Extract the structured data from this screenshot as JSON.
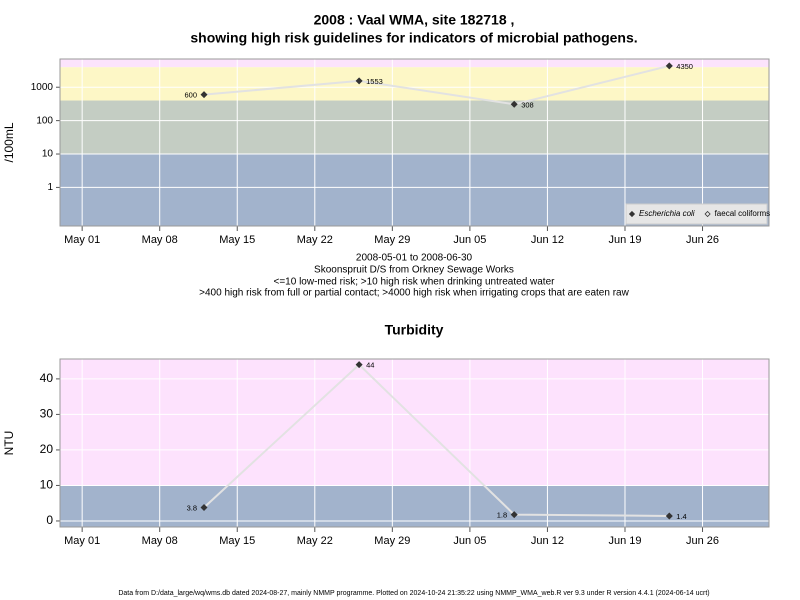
{
  "title": "2008 : Vaal WMA, site 182718 ,",
  "subtitle": "showing high risk guidelines for indicators of microbial pathogens.",
  "captions": [
    "2008-05-01 to 2008-06-30",
    "Skoonspruit D/S from Orkney Sewage Works",
    "<=10 low-med risk; >10 high risk when drinking untreated water",
    ">400 high risk from full or partial contact; >4000 high risk when irrigating crops that are eaten raw"
  ],
  "footer": "Data from D:/data_large/wq/wms.db dated 2024-08-27, mainly NMMP programme. Plotted on 2024-10-24 21:35:22 using NMMP_WMA_web.R ver 9.3 under R version 4.4.1 (2024-06-14 ucrt)",
  "chart_data": [
    {
      "type": "line",
      "y_label": "/100mL",
      "log_y": true,
      "grid": true,
      "legend": "bottom-right",
      "x": [
        "05-12",
        "05-26",
        "06-09",
        "06-23"
      ],
      "series": [
        {
          "name": "Escherichia coli",
          "color": "#333333",
          "line_color": "#e2e2e2",
          "values": [
            600,
            1553,
            308,
            4350
          ]
        },
        {
          "name": "faecal coliforms",
          "color": "#333333",
          "line_color": "#e2e2e2",
          "values": [
            null,
            null,
            null,
            null
          ]
        }
      ],
      "xlim": [
        "04-29",
        "07-02"
      ],
      "xticks": [
        {
          "value": "05-01",
          "label": "May 01"
        },
        {
          "value": "05-08",
          "label": "May 08"
        },
        {
          "value": "05-15",
          "label": "May 15"
        },
        {
          "value": "05-22",
          "label": "May 22"
        },
        {
          "value": "05-29",
          "label": "May 29"
        },
        {
          "value": "06-05",
          "label": "Jun 05"
        },
        {
          "value": "06-12",
          "label": "Jun 12"
        },
        {
          "value": "06-19",
          "label": "Jun 19"
        },
        {
          "value": "06-26",
          "label": "Jun 26"
        }
      ],
      "ylim": [
        0.07,
        7000
      ],
      "yticks": [
        1,
        10,
        100,
        1000
      ],
      "band_limits": [
        10,
        400,
        4000
      ],
      "band_colors": [
        "#a2b3cc",
        "#c4cdc3",
        "#fdf7c6",
        "#fce3fc"
      ]
    },
    {
      "type": "line",
      "title": "Turbidity",
      "y_label": "NTU",
      "log_y": false,
      "grid": true,
      "x": [
        "05-12",
        "05-26",
        "06-09",
        "06-23"
      ],
      "series": [
        {
          "name": "Turbidity",
          "color": "#333333",
          "line_color": "#e2e2e2",
          "values": [
            3.8,
            44,
            1.8,
            1.4
          ]
        }
      ],
      "xlim": [
        "04-29",
        "07-02"
      ],
      "xticks": [
        {
          "value": "05-01",
          "label": "May 01"
        },
        {
          "value": "05-08",
          "label": "May 08"
        },
        {
          "value": "05-15",
          "label": "May 15"
        },
        {
          "value": "05-22",
          "label": "May 22"
        },
        {
          "value": "05-29",
          "label": "May 29"
        },
        {
          "value": "06-05",
          "label": "Jun 05"
        },
        {
          "value": "06-12",
          "label": "Jun 12"
        },
        {
          "value": "06-19",
          "label": "Jun 19"
        },
        {
          "value": "06-26",
          "label": "Jun 26"
        }
      ],
      "ylim": [
        -1.7,
        45.6
      ],
      "yticks": [
        0,
        10,
        20,
        30,
        40
      ],
      "band_limits": [
        10
      ],
      "band_colors": [
        "#a2b3cc",
        "#fde2fd"
      ]
    }
  ]
}
